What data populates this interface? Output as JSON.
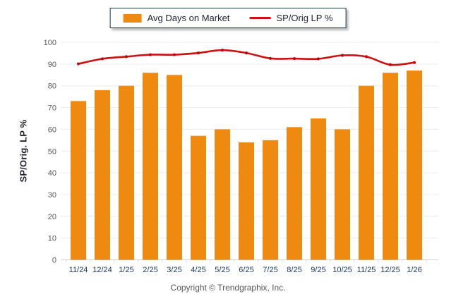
{
  "legend": {
    "items": [
      {
        "label": "Avg Days on Market",
        "type": "bar"
      },
      {
        "label": "SP/Orig LP %",
        "type": "line"
      }
    ]
  },
  "footer": {
    "copyright": "Copyright © Trendgraphix, Inc."
  },
  "theme": {
    "bar_color": "#EE8A10",
    "line_color": "#CC1111",
    "marker_color": "#B00F0F",
    "x_tick_color": "#17375E",
    "y_tick_color": "#595959",
    "grid_color": "#ECECEC",
    "axis_color": "#CFCFCF",
    "minor_tick_color": "#D8D8D8"
  },
  "chart_data": {
    "type": "bar",
    "title": "",
    "xlabel": "",
    "ylabel": "SP/Orig. LP %",
    "ylim": [
      0,
      100
    ],
    "yticks": [
      0,
      10,
      20,
      30,
      40,
      50,
      60,
      70,
      80,
      90,
      100
    ],
    "grid": true,
    "legend_position": "top",
    "categories": [
      "11/24",
      "12/24",
      "1/25",
      "2/25",
      "3/25",
      "4/25",
      "5/25",
      "6/25",
      "7/25",
      "8/25",
      "9/25",
      "10/25",
      "11/25",
      "12/25",
      "1/26"
    ],
    "series": [
      {
        "name": "Avg Days on Market",
        "type": "bar",
        "values": [
          73,
          78,
          80,
          86,
          85,
          57,
          60,
          54,
          55,
          61,
          65,
          60,
          80,
          86,
          87
        ]
      },
      {
        "name": "SP/Orig LP %",
        "type": "line",
        "values": [
          90.1,
          92.4,
          93.4,
          94.3,
          94.3,
          95.1,
          96.4,
          95.1,
          92.6,
          92.5,
          92.4,
          94.0,
          93.4,
          89.7,
          90.7
        ]
      }
    ]
  }
}
